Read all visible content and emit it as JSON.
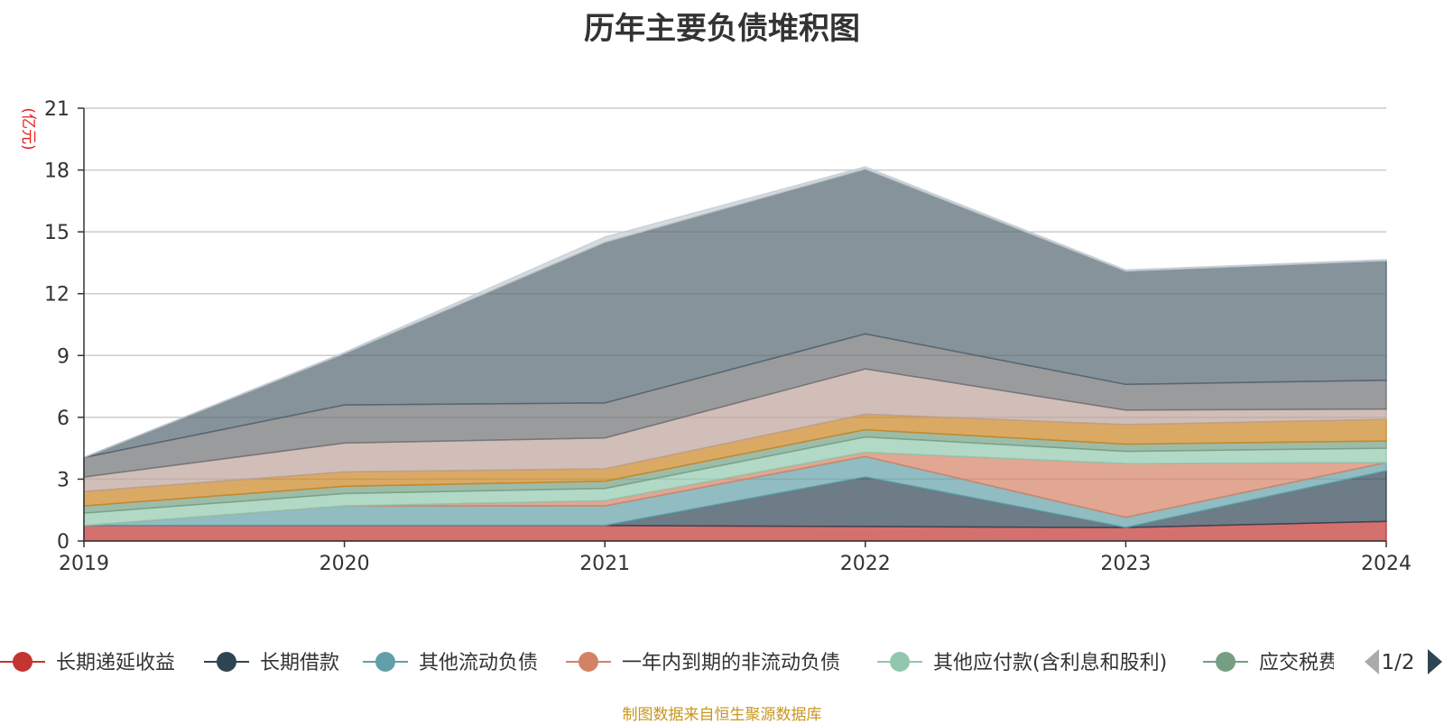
{
  "title": "历年主要负债堆积图",
  "unit_label": "(亿元)",
  "source_note": "制图数据来自恒生聚源数据库",
  "legend_page": "1/2",
  "chart_data": {
    "type": "area",
    "stacked": true,
    "title": "历年主要负债堆积图",
    "ylabel": "(亿元)",
    "ylim": [
      0,
      21
    ],
    "yticks": [
      0,
      3,
      6,
      9,
      12,
      15,
      18,
      21
    ],
    "x": [
      "2019",
      "2020",
      "2021",
      "2022",
      "2023",
      "2024"
    ],
    "grid": true,
    "legend_position": "bottom",
    "series": [
      {
        "name": "长期递延收益",
        "color": "#c23531",
        "values": [
          0.75,
          0.75,
          0.75,
          0.7,
          0.65,
          0.95
        ],
        "legend": true
      },
      {
        "name": "长期借款",
        "color": "#2f4554",
        "values": [
          0,
          0,
          0,
          2.4,
          0,
          2.45
        ],
        "legend": true
      },
      {
        "name": "其他流动负债",
        "color": "#61a0a8",
        "values": [
          0,
          0.95,
          0.95,
          1.0,
          0.5,
          0.4
        ],
        "legend": true
      },
      {
        "name": "一年内到期的非流动负债",
        "color": "#d48265",
        "values": [
          0,
          0,
          0.25,
          0.2,
          2.6,
          0
        ],
        "legend": true
      },
      {
        "name": "其他应付款(含利息和股利)",
        "color": "#91c7ae",
        "values": [
          0.6,
          0.6,
          0.6,
          0.75,
          0.6,
          0.7
        ],
        "legend": true
      },
      {
        "name": "应交税费",
        "color": "#749f83",
        "values": [
          0.35,
          0.35,
          0.35,
          0.35,
          0.35,
          0.35
        ],
        "legend": true
      },
      {
        "name": "",
        "color": "#ca8622",
        "values": [
          0.7,
          0.7,
          0.6,
          0.75,
          0.95,
          1.05
        ],
        "legend": false
      },
      {
        "name": "",
        "color": "#bda29a",
        "values": [
          0.7,
          1.4,
          1.5,
          2.2,
          0.7,
          0.5
        ],
        "legend": false
      },
      {
        "name": "",
        "color": "#6e7074",
        "values": [
          0.95,
          1.85,
          1.7,
          1.7,
          1.25,
          1.4
        ],
        "legend": false
      },
      {
        "name": "",
        "color": "#546570",
        "values": [
          0,
          2.5,
          7.8,
          8.0,
          5.5,
          5.8
        ],
        "legend": false
      },
      {
        "name": "",
        "color": "#c4ccd3",
        "values": [
          0,
          0.05,
          0.25,
          0.1,
          0.05,
          0.05
        ],
        "legend": false
      }
    ]
  }
}
